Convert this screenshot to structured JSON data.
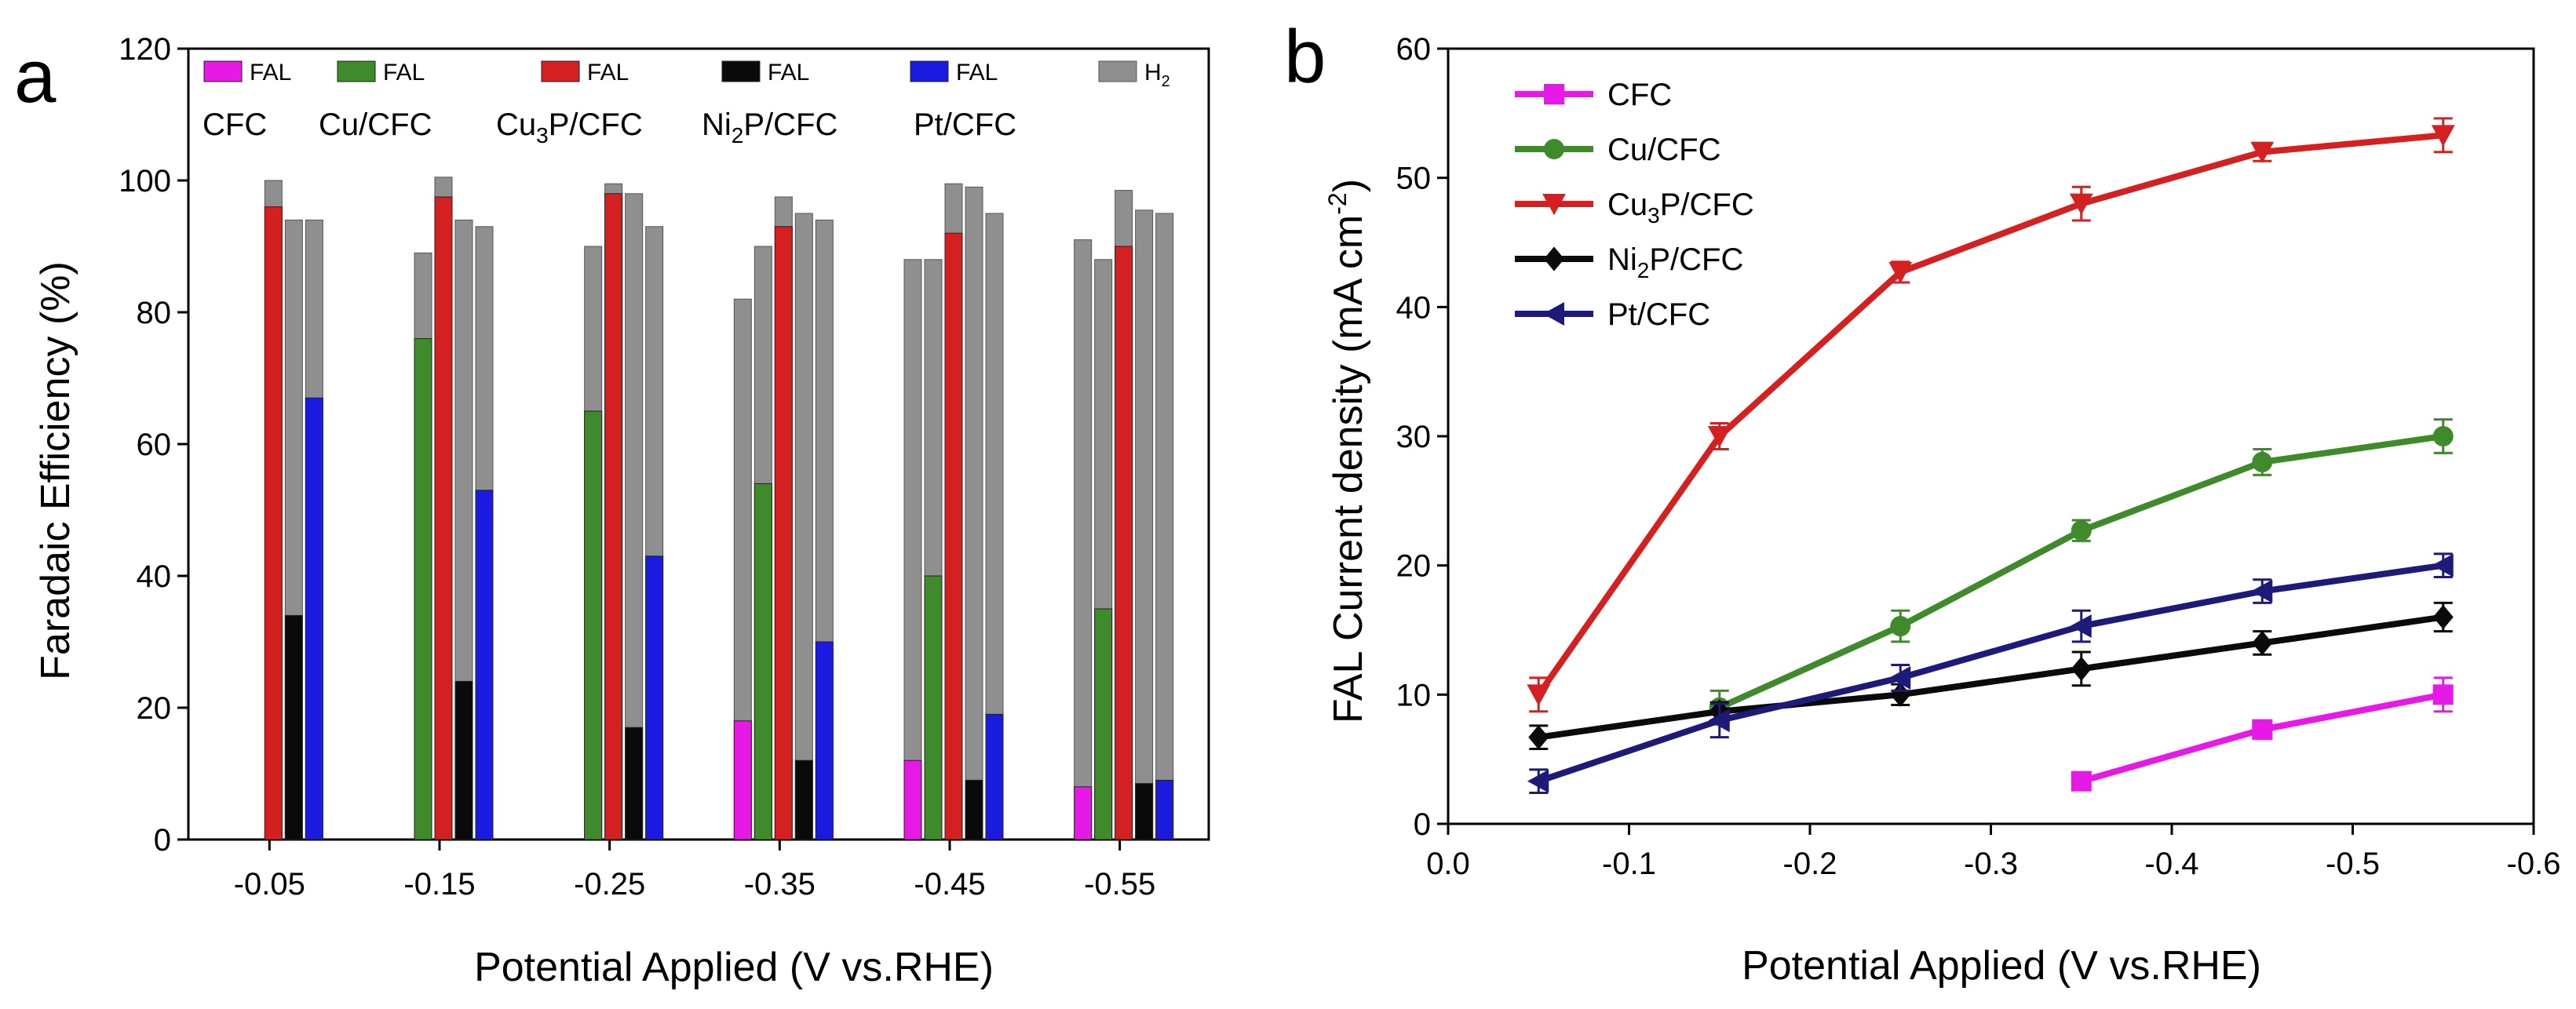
{
  "chart_data": [
    {
      "panel": "a",
      "type": "bar",
      "stacked_overlay": true,
      "xlabel": "Potential Applied (V vs.RHE)",
      "ylabel": "Faradaic Efficiency (%)",
      "ylim": [
        0,
        120
      ],
      "yticks": [
        "0",
        "20",
        "40",
        "60",
        "80",
        "100",
        "120"
      ],
      "categories": [
        "-0.05",
        "-0.15",
        "-0.25",
        "-0.35",
        "-0.45",
        "-0.55"
      ],
      "legend_fal": "FAL",
      "legend_h2_main": "H",
      "legend_h2_sub": "2",
      "colors": {
        "CFC": "#e619e6",
        "Cu/CFC": "#3f8a2a",
        "Cu3P/CFC": "#d42020",
        "Ni2P/CFC": "#0a0a0a",
        "Pt/CFC": "#1a1ae0",
        "H2": "#8f8f8f"
      },
      "catalyst_labels": [
        {
          "key": "CFC",
          "main": "CFC",
          "sub": "",
          "tail": ""
        },
        {
          "key": "Cu/CFC",
          "main": "Cu/CFC",
          "sub": "",
          "tail": ""
        },
        {
          "key": "Cu3P/CFC",
          "main": "Cu",
          "sub": "3",
          "tail": "P/CFC"
        },
        {
          "key": "Ni2P/CFC",
          "main": "Ni",
          "sub": "2",
          "tail": "P/CFC"
        },
        {
          "key": "Pt/CFC",
          "main": "Pt/CFC",
          "sub": "",
          "tail": ""
        }
      ],
      "series": [
        {
          "name": "CFC",
          "fal": [
            0,
            0,
            0,
            18,
            12,
            8
          ],
          "total": [
            0,
            0,
            0,
            82,
            88,
            91
          ]
        },
        {
          "name": "Cu/CFC",
          "fal": [
            0,
            76,
            65,
            54,
            40,
            35
          ],
          "total": [
            0,
            89,
            90,
            90,
            88,
            88
          ]
        },
        {
          "name": "Cu3P/CFC",
          "fal": [
            96,
            97.5,
            98,
            93,
            92,
            90
          ],
          "total": [
            100,
            100.5,
            99.5,
            97.5,
            99.5,
            98.5
          ]
        },
        {
          "name": "Ni2P/CFC",
          "fal": [
            34,
            24,
            17,
            12,
            9,
            8.5
          ],
          "total": [
            94,
            94,
            98,
            95,
            99,
            95.5
          ]
        },
        {
          "name": "Pt/CFC",
          "fal": [
            67,
            53,
            43,
            30,
            19,
            9
          ],
          "total": [
            94,
            93,
            93,
            94,
            95,
            95
          ]
        }
      ]
    },
    {
      "panel": "b",
      "type": "line",
      "xlabel": "Potential Applied (V vs.RHE)",
      "ylabel": "FAL Current density (mA cm",
      "ylabel_sup": "-2",
      "ylabel_close": ")",
      "xlim": [
        0.0,
        -0.6
      ],
      "ylim": [
        0,
        60
      ],
      "xticks": [
        "0.0",
        "-0.1",
        "-0.2",
        "-0.3",
        "-0.4",
        "-0.5",
        "-0.6"
      ],
      "yticks": [
        "0",
        "10",
        "20",
        "30",
        "40",
        "50",
        "60"
      ],
      "series": [
        {
          "name": "CFC",
          "main": "CFC",
          "sub": "",
          "tail": "",
          "color": "#e619e6",
          "marker": "square",
          "x": [
            -0.35,
            -0.45,
            -0.55
          ],
          "y": [
            3.3,
            7.3,
            10.0
          ],
          "err": [
            0.5,
            0.7,
            1.3
          ]
        },
        {
          "name": "Cu/CFC",
          "main": "Cu/CFC",
          "sub": "",
          "tail": "",
          "color": "#3f8a2a",
          "marker": "circle",
          "x": [
            -0.15,
            -0.25,
            -0.35,
            -0.45,
            -0.55
          ],
          "y": [
            9.0,
            15.3,
            22.7,
            28.0,
            30.0
          ],
          "err": [
            1.3,
            1.2,
            0.8,
            1.0,
            1.3
          ]
        },
        {
          "name": "Cu3P/CFC",
          "main": "Cu",
          "sub": "3",
          "tail": "P/CFC",
          "color": "#d42020",
          "marker": "triangle-down",
          "x": [
            -0.05,
            -0.15,
            -0.25,
            -0.35,
            -0.45,
            -0.55
          ],
          "y": [
            10.0,
            30.0,
            42.7,
            48.0,
            52.0,
            53.3
          ],
          "err": [
            1.3,
            1.0,
            0.8,
            1.3,
            0.7,
            1.3
          ]
        },
        {
          "name": "Ni2P/CFC",
          "main": "Ni",
          "sub": "2",
          "tail": "P/CFC",
          "color": "#0a0a0a",
          "marker": "diamond",
          "x": [
            -0.05,
            -0.15,
            -0.25,
            -0.35,
            -0.45,
            -0.55
          ],
          "y": [
            6.7,
            8.7,
            10.0,
            12.0,
            14.0,
            16.0
          ],
          "err": [
            0.9,
            0.7,
            0.8,
            1.3,
            0.9,
            1.1
          ]
        },
        {
          "name": "Pt/CFC",
          "main": "Pt/CFC",
          "sub": "",
          "tail": "",
          "color": "#1e1a7a",
          "marker": "triangle-left",
          "x": [
            -0.05,
            -0.15,
            -0.25,
            -0.35,
            -0.45,
            -0.55
          ],
          "y": [
            3.3,
            8.0,
            11.3,
            15.3,
            18.0,
            20.0
          ],
          "err": [
            0.9,
            1.3,
            1.0,
            1.2,
            0.9,
            0.9
          ]
        }
      ]
    }
  ],
  "labels": {
    "panel_a": "a",
    "panel_b": "b"
  }
}
